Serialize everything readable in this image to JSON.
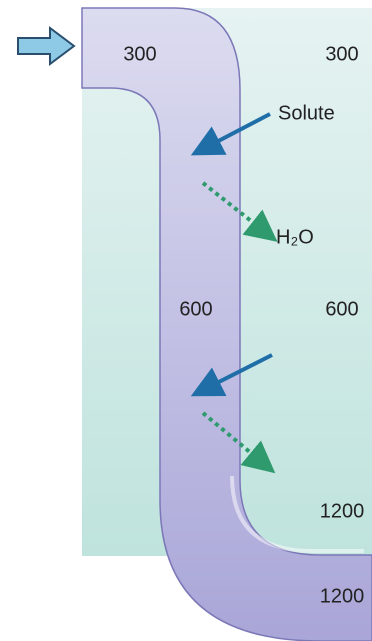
{
  "labels": {
    "top_left": 300,
    "top_right": 300,
    "solute": "Solute",
    "water": "H₂O",
    "mid_left": 600,
    "mid_right": 600,
    "bottom_inner": 1200,
    "bottom_outer": 1200
  }
}
